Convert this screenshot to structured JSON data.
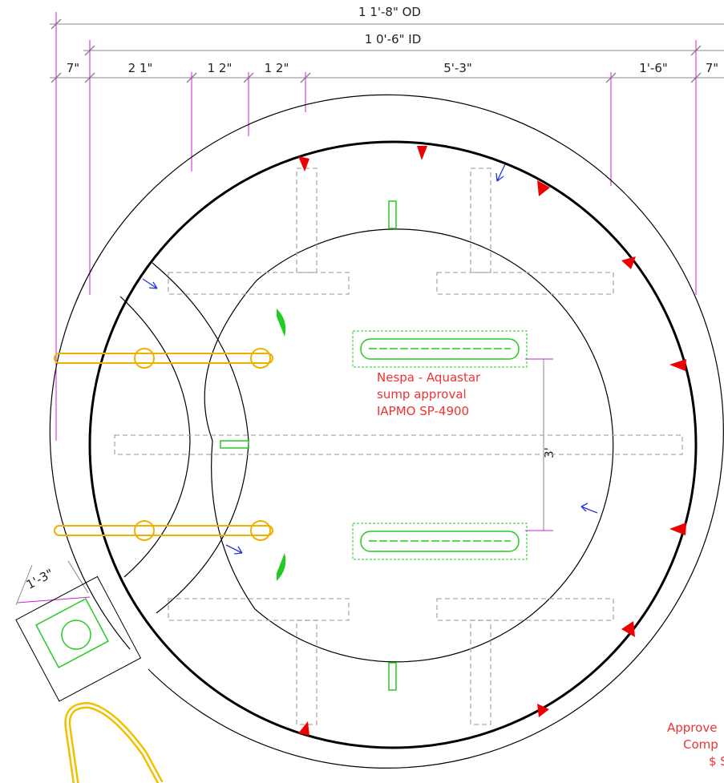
{
  "dimensions": {
    "outer": "1 1'-8\" OD",
    "inner": "1 0'-6\" ID",
    "segments": [
      "7\"",
      "2 1\"",
      "1 2\"",
      "1 2\"",
      "5'-3\"",
      "1'-6\"",
      "7\""
    ],
    "sump_spacing": "3'",
    "inlet": "1'-3\""
  },
  "note": [
    "Nespa - Aquastar",
    "sump approval",
    "IAPMO SP-4900"
  ],
  "corner_note": [
    "Approve",
    "Comp",
    "$ S"
  ]
}
